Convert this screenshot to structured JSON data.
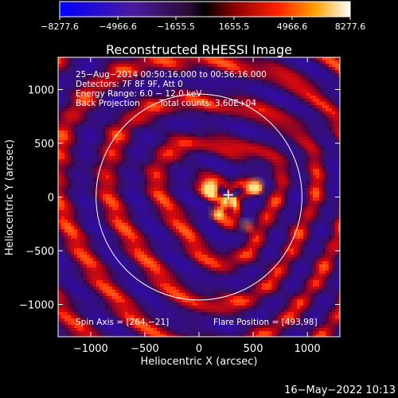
{
  "chart_data": {
    "type": "heatmap",
    "title": "Reconstructed RHESSI Image",
    "xlabel": "Heliocentric X (arcsec)",
    "ylabel": "Heliocentric Y (arcsec)",
    "xlim": [
      -1300,
      1300
    ],
    "ylim": [
      -1300,
      1300
    ],
    "xticks": [
      -1000,
      -500,
      0,
      500,
      1000
    ],
    "yticks": [
      1000,
      500,
      0,
      -500,
      -1000
    ],
    "xtick_labels": [
      "−1000",
      "−500",
      "0",
      "500",
      "1000"
    ],
    "ytick_labels": [
      "1000",
      "500",
      "0",
      "−500",
      "−1000"
    ],
    "colorbar": {
      "range": [
        -8277.6,
        8277.6
      ],
      "tick_labels": [
        "−8277.6",
        "−4966.6",
        "−1655.5",
        "1655.5",
        "4966.6",
        "8277.6"
      ]
    },
    "solar_limb_radius_arcsec": 950,
    "annotations": {
      "time_range": "25−Aug−2014 00:50:16.000 to 00:56:16.000",
      "detectors": "Detectors: 7F 8F 9F, Att 0",
      "energy_range": "Energy Range: 6.0 − 12.0 keV",
      "method": "Back Projection",
      "total_counts": "Total counts: 3.60E+04",
      "spin_axis": "Spin Axis = [264,−21]",
      "flare_position": "Flare Position = [493,98]"
    },
    "sources": [
      {
        "x": 520,
        "y": 100,
        "intensity": 1.0
      },
      {
        "x": 100,
        "y": 90,
        "intensity": 0.9
      },
      {
        "x": 280,
        "y": -30,
        "intensity": 0.75
      },
      {
        "x": 440,
        "y": -260,
        "intensity": 0.6
      },
      {
        "x": 150,
        "y": -150,
        "intensity": 0.55
      }
    ],
    "marker": {
      "x": 270,
      "y": 20
    }
  },
  "footer": {
    "timestamp": "16−May−2022 10:13"
  }
}
